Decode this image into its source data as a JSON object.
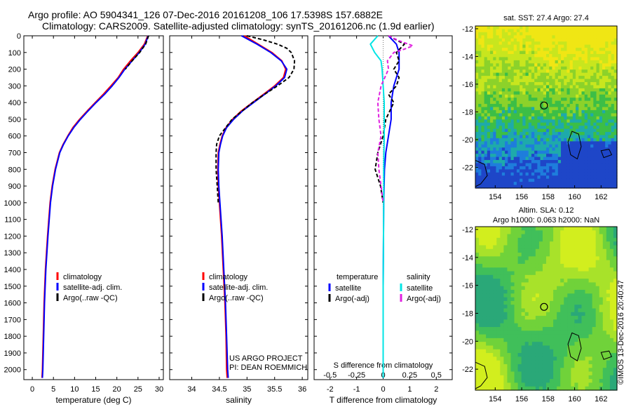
{
  "header": {
    "line1": "Argo profile: AO 5904341_126 07-Dec-2016 20161208_106 17.5398S 157.6882E",
    "line2": "Climatology: CARS2009. Satellite-adjusted climatology: synTS_20161206.nc (1.9d earlier)"
  },
  "credits": {
    "project": "US ARGO PROJECT",
    "pi": "PI: DEAN ROEMMICH",
    "copyright": "©IMOS 13-Dec-2016 20:40:47"
  },
  "colors": {
    "climatology": "#ff0000",
    "satellite": "#0000ff",
    "argo": "#000000",
    "salinity_satellite": "#00e5e5",
    "salinity_argo": "#e020e0"
  },
  "chart_data": [
    {
      "type": "line",
      "name": "temperature",
      "xlabel": "temperature (deg C)",
      "ylabel": "",
      "xlim": [
        -2,
        31
      ],
      "ylim": [
        2060,
        0
      ],
      "xticks": [
        0,
        5,
        10,
        15,
        20,
        25,
        30
      ],
      "yticks": [
        0,
        100,
        200,
        300,
        400,
        500,
        600,
        700,
        800,
        900,
        1000,
        1100,
        1200,
        1300,
        1400,
        1500,
        1600,
        1700,
        1800,
        1900,
        2000
      ],
      "legend": [
        "climatology",
        "satellite-adj. clim.",
        "Argo(..raw -QC)"
      ],
      "legend_position": "lower-center",
      "series": [
        {
          "name": "climatology",
          "depth": [
            0,
            50,
            100,
            150,
            200,
            250,
            300,
            350,
            400,
            450,
            500,
            550,
            600,
            650,
            700,
            800,
            900,
            1000,
            1200,
            1400,
            1600,
            1800,
            2000,
            2050
          ],
          "values": [
            27.3,
            26.5,
            25,
            23.2,
            21.6,
            20.3,
            18.6,
            16.8,
            14.9,
            13,
            11.2,
            9.6,
            8.4,
            7.3,
            6.4,
            5.4,
            4.7,
            4.2,
            3.6,
            3.1,
            2.8,
            2.6,
            2.4,
            2.3
          ]
        },
        {
          "name": "satellite-adj. clim.",
          "depth": [
            0,
            50,
            100,
            150,
            200,
            250,
            300,
            350,
            400,
            450,
            500,
            550,
            600,
            650,
            700,
            800,
            900,
            1000,
            1200,
            1400,
            1600,
            1800,
            2000,
            2050
          ],
          "values": [
            27.4,
            26.7,
            25.3,
            23.6,
            21.9,
            20.5,
            18.9,
            17.1,
            15.1,
            13.2,
            11.4,
            9.8,
            8.5,
            7.4,
            6.5,
            5.5,
            4.8,
            4.3,
            3.7,
            3.2,
            2.9,
            2.7,
            2.5,
            2.4
          ]
        },
        {
          "name": "Argo(..raw -QC)",
          "depth": [
            0,
            50,
            100,
            150,
            200
          ],
          "values": [
            27.5,
            26.8,
            25.4,
            23.6,
            22
          ]
        }
      ]
    },
    {
      "type": "line",
      "name": "salinity",
      "xlabel": "salinity",
      "ylabel": "",
      "xlim": [
        33.6,
        36.1
      ],
      "ylim": [
        2060,
        0
      ],
      "xticks": [
        34,
        34.5,
        35,
        35.5,
        36
      ],
      "legend": [
        "climatology",
        "satellite-adj. clim.",
        "Argo(..raw -QC)"
      ],
      "legend_position": "lower-center",
      "series": [
        {
          "name": "climatology",
          "depth": [
            0,
            50,
            100,
            150,
            200,
            250,
            300,
            350,
            400,
            450,
            500,
            550,
            600,
            650,
            700,
            800,
            900,
            1000,
            1200,
            1400,
            1600,
            1800,
            2000,
            2050
          ],
          "values": [
            34.95,
            35.2,
            35.45,
            35.63,
            35.7,
            35.66,
            35.5,
            35.3,
            35.1,
            34.9,
            34.74,
            34.62,
            34.55,
            34.51,
            34.48,
            34.47,
            34.48,
            34.5,
            34.54,
            34.57,
            34.6,
            34.62,
            34.63,
            34.64
          ]
        },
        {
          "name": "satellite-adj. clim.",
          "depth": [
            0,
            50,
            100,
            150,
            200,
            250,
            300,
            350,
            400,
            450,
            500,
            550,
            600,
            650,
            700,
            800,
            900,
            1000,
            1200,
            1400,
            1600,
            1800,
            2000,
            2050
          ],
          "values": [
            34.9,
            35.18,
            35.43,
            35.62,
            35.72,
            35.68,
            35.52,
            35.32,
            35.12,
            34.92,
            34.76,
            34.63,
            34.56,
            34.52,
            34.49,
            34.48,
            34.49,
            34.51,
            34.55,
            34.58,
            34.61,
            34.63,
            34.65,
            34.66
          ]
        },
        {
          "name": "Argo(..raw -QC)",
          "depth": [
            0,
            25,
            50,
            75,
            100,
            150,
            200,
            250,
            300,
            350,
            400,
            500,
            600,
            650,
            700,
            800,
            900,
            1000
          ],
          "values": [
            35.0,
            35.3,
            35.55,
            35.72,
            35.8,
            35.86,
            35.85,
            35.76,
            35.55,
            35.32,
            35.1,
            34.73,
            34.5,
            34.45,
            34.44,
            34.44,
            34.46,
            34.48
          ]
        }
      ]
    },
    {
      "type": "line",
      "name": "difference-from-climatology",
      "xlabel": "T difference from climatology",
      "x2label": "S difference from climatology",
      "xlim": [
        -2.6,
        2.6
      ],
      "x2lim": [
        -0.65,
        0.65
      ],
      "ylim": [
        2060,
        0
      ],
      "xticks": [
        -2,
        -1,
        0,
        1,
        2
      ],
      "x2ticks": [
        -0.5,
        -0.25,
        0,
        0.25,
        0.5
      ],
      "legend_titles": [
        "temperature",
        "salinity"
      ],
      "legend": [
        "satellite",
        "Argo(-adj)",
        "satellite",
        "Argo(-adj)"
      ],
      "legend_position": "lower-center",
      "series": [
        {
          "name": "temperature satellite",
          "depth": [
            0,
            50,
            100,
            150,
            200,
            250,
            300,
            400,
            500,
            600,
            700,
            800,
            1000,
            1500,
            2000,
            2050
          ],
          "values": [
            0.2,
            0.5,
            0.6,
            0.6,
            0.6,
            0.5,
            0.4,
            0.3,
            0.3,
            0.2,
            0.1,
            0.05,
            0.02,
            0.0,
            0.0,
            0.0
          ]
        },
        {
          "name": "temperature Argo(-adj)",
          "depth": [
            0,
            50,
            100,
            150,
            200,
            250,
            300,
            350,
            400,
            500,
            600,
            700,
            800,
            900,
            1000
          ],
          "values": [
            0.2,
            0.8,
            0.5,
            0.6,
            0.4,
            0.6,
            0.5,
            0.2,
            0.4,
            0.1,
            0.0,
            -0.2,
            -0.3,
            -0.1,
            0.0
          ]
        },
        {
          "name": "salinity satellite",
          "depth": [
            0,
            50,
            100,
            150,
            200,
            300,
            400,
            500,
            600,
            800,
            1000,
            1500,
            2000,
            2050
          ],
          "values": [
            -0.05,
            -0.12,
            -0.08,
            -0.02,
            -0.01,
            0.0,
            0.01,
            0.01,
            0.01,
            0.005,
            0.005,
            0.0,
            0.0,
            0.0
          ]
        },
        {
          "name": "salinity Argo(-adj)",
          "depth": [
            0,
            30,
            60,
            80,
            100,
            150,
            200,
            300,
            400,
            500,
            600,
            700,
            800,
            900,
            1000
          ],
          "values": [
            0.05,
            0.15,
            0.28,
            0.2,
            0.1,
            0.04,
            0.05,
            -0.02,
            -0.05,
            -0.04,
            -0.02,
            -0.05,
            -0.04,
            -0.02,
            0.0
          ]
        }
      ]
    },
    {
      "type": "heatmap",
      "name": "sst-map",
      "title": "sat. SST: 27.4 Argo: 27.4",
      "xlim": [
        152.5,
        163.2
      ],
      "ylim": [
        -23.5,
        -11.8
      ],
      "xticks": [
        154,
        156,
        158,
        160,
        162
      ],
      "yticks": [
        -12,
        -14,
        -16,
        -18,
        -20,
        -22
      ],
      "marker": {
        "lon": 157.69,
        "lat": -17.54
      }
    },
    {
      "type": "heatmap",
      "name": "sla-map",
      "title": "Altim. SLA: 0.12",
      "subtitle": "Argo h1000: 0.063 h2000: NaN",
      "xlim": [
        152.5,
        163.2
      ],
      "ylim": [
        -23.5,
        -11.8
      ],
      "xticks": [
        154,
        156,
        158,
        160,
        162
      ],
      "yticks": [
        -12,
        -14,
        -16,
        -18,
        -20,
        -22
      ],
      "marker": {
        "lon": 157.69,
        "lat": -17.54
      }
    }
  ]
}
